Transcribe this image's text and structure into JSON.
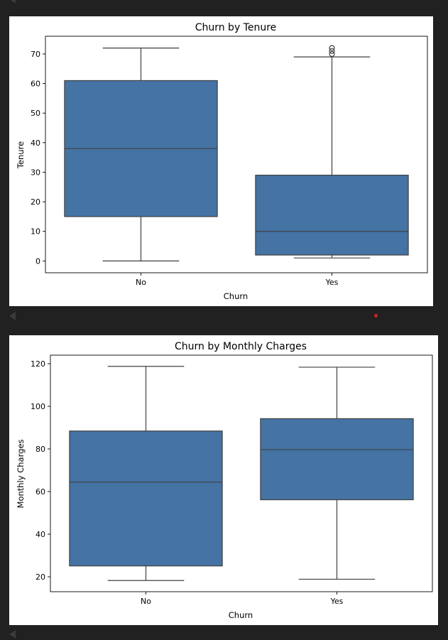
{
  "notebook": {
    "output_markers": [
      "cell-output-1",
      "cell-output-2",
      "cell-output-3"
    ]
  },
  "chart_data": [
    {
      "type": "box",
      "title": "Churn by Tenure",
      "xlabel": "Churn",
      "ylabel": "Tenure",
      "categories": [
        "No",
        "Yes"
      ],
      "ylim": [
        -4,
        76
      ],
      "yticks": [
        0,
        10,
        20,
        30,
        40,
        50,
        60,
        70
      ],
      "color": "#4473a4",
      "boxes": [
        {
          "category": "No",
          "whisker_low": 0,
          "q1": 15,
          "median": 38,
          "q3": 61,
          "whisker_high": 72,
          "outliers": []
        },
        {
          "category": "Yes",
          "whisker_low": 1,
          "q1": 2,
          "median": 10,
          "q3": 29,
          "whisker_high": 69,
          "outliers": [
            70,
            71,
            72
          ]
        }
      ]
    },
    {
      "type": "box",
      "title": "Churn by Monthly Charges",
      "xlabel": "Churn",
      "ylabel": "Monthly Charges",
      "categories": [
        "No",
        "Yes"
      ],
      "ylim": [
        13,
        124
      ],
      "yticks": [
        20,
        40,
        60,
        80,
        100,
        120
      ],
      "color": "#4473a4",
      "boxes": [
        {
          "category": "No",
          "whisker_low": 18.25,
          "q1": 25.1,
          "median": 64.4,
          "q3": 88.4,
          "whisker_high": 118.75,
          "outliers": []
        },
        {
          "category": "Yes",
          "whisker_low": 18.85,
          "q1": 56.15,
          "median": 79.65,
          "q3": 94.2,
          "whisker_high": 118.35,
          "outliers": []
        }
      ]
    }
  ]
}
